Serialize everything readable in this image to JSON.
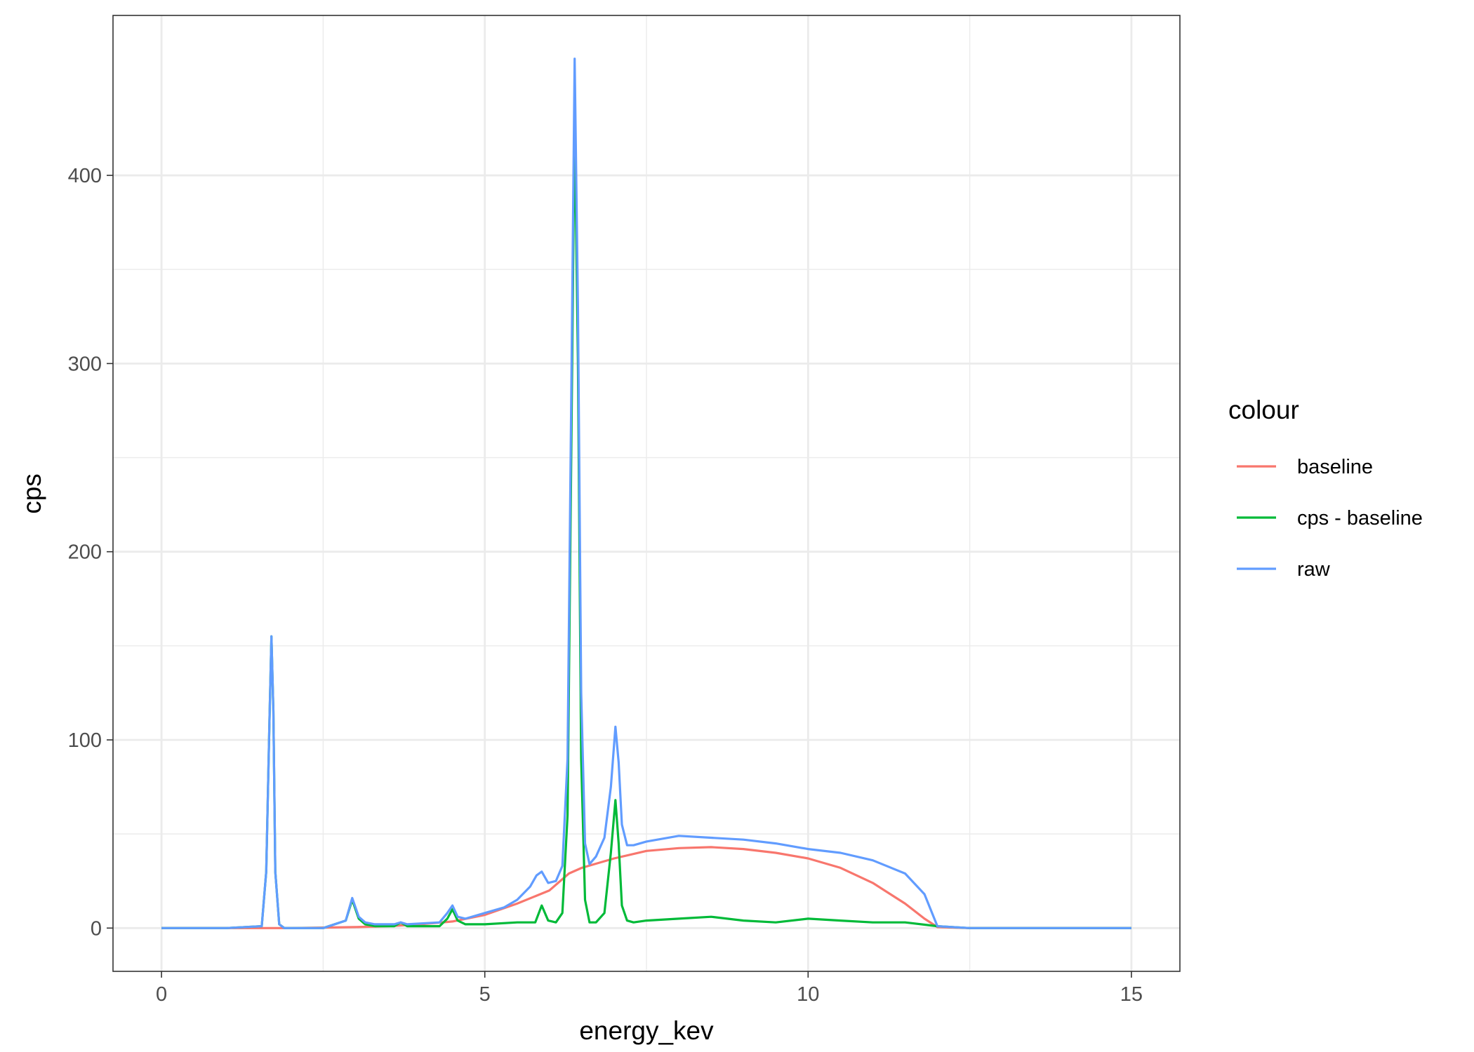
{
  "chart_data": {
    "type": "line",
    "xlabel": "energy_kev",
    "ylabel": "cps",
    "xlim": [
      -0.75,
      15.75
    ],
    "ylim": [
      -23,
      485
    ],
    "x_ticks": [
      0,
      5,
      10,
      15
    ],
    "x_tick_labels": [
      "0",
      "5",
      "10",
      "15"
    ],
    "y_ticks": [
      0,
      100,
      200,
      300,
      400
    ],
    "y_tick_labels": [
      "0",
      "100",
      "200",
      "300",
      "400"
    ],
    "grid": true,
    "legend": {
      "title": "colour",
      "placement": "right"
    },
    "series": [
      {
        "name": "baseline",
        "color": "#F8766D",
        "x": [
          0,
          1,
          2,
          3,
          3.5,
          4,
          4.5,
          5,
          5.5,
          6,
          6.3,
          6.5,
          7,
          7.5,
          8,
          8.5,
          9,
          9.5,
          10,
          10.5,
          11,
          11.5,
          11.8,
          12,
          12.5,
          13,
          14,
          15
        ],
        "y": [
          0,
          0,
          0,
          0.5,
          1,
          2,
          3.5,
          7,
          13,
          20,
          29,
          32,
          37,
          41,
          42.5,
          43,
          42,
          40,
          37,
          32,
          24,
          13,
          5,
          0.5,
          0,
          0,
          0,
          0
        ]
      },
      {
        "name": "cps - baseline",
        "color": "#00BA38",
        "x": [
          0,
          1,
          1.55,
          1.62,
          1.67,
          1.7,
          1.73,
          1.76,
          1.82,
          1.9,
          2.5,
          2.85,
          2.95,
          3.05,
          3.15,
          3.3,
          3.6,
          3.7,
          3.8,
          4.3,
          4.42,
          4.5,
          4.58,
          4.7,
          5,
          5.5,
          5.78,
          5.88,
          5.98,
          6.1,
          6.2,
          6.28,
          6.34,
          6.39,
          6.44,
          6.49,
          6.55,
          6.62,
          6.72,
          6.85,
          6.95,
          7.02,
          7.07,
          7.12,
          7.2,
          7.3,
          7.5,
          8,
          8.5,
          9,
          9.5,
          10,
          10.5,
          11,
          11.5,
          12,
          12.5,
          13,
          14,
          15
        ],
        "y": [
          0,
          0,
          1,
          30,
          110,
          155,
          115,
          30,
          2,
          0,
          0,
          4,
          15,
          5,
          2,
          1,
          1,
          3,
          1,
          1,
          5,
          10,
          4,
          2,
          2,
          3,
          3,
          12,
          4,
          3,
          8,
          60,
          260,
          432,
          300,
          90,
          15,
          3,
          3,
          8,
          40,
          68,
          45,
          12,
          4,
          3,
          4,
          5,
          6,
          4,
          3,
          5,
          4,
          3,
          3,
          1,
          0,
          0,
          0,
          0
        ]
      },
      {
        "name": "raw",
        "color": "#619CFF",
        "x": [
          0,
          1,
          1.55,
          1.62,
          1.67,
          1.7,
          1.73,
          1.76,
          1.82,
          1.9,
          2.5,
          2.85,
          2.95,
          3.05,
          3.15,
          3.3,
          3.6,
          3.7,
          3.8,
          4.3,
          4.42,
          4.5,
          4.58,
          4.7,
          5,
          5.3,
          5.5,
          5.7,
          5.8,
          5.88,
          5.98,
          6.1,
          6.2,
          6.28,
          6.34,
          6.39,
          6.44,
          6.49,
          6.55,
          6.62,
          6.72,
          6.85,
          6.95,
          7.02,
          7.07,
          7.12,
          7.2,
          7.3,
          7.5,
          8,
          8.5,
          9,
          9.5,
          10,
          10.5,
          11,
          11.5,
          11.8,
          12,
          12.5,
          13,
          14,
          15
        ],
        "y": [
          0,
          0,
          1,
          30,
          110,
          155,
          115,
          30,
          2,
          0,
          0,
          4,
          16,
          6,
          3,
          2,
          2,
          3,
          2,
          3,
          8,
          12,
          6,
          5,
          8,
          11,
          15,
          22,
          28,
          30,
          24,
          25,
          33,
          90,
          290,
          462,
          330,
          125,
          45,
          34,
          38,
          48,
          75,
          107,
          88,
          55,
          44,
          44,
          46,
          49,
          48,
          47,
          45,
          42,
          40,
          36,
          29,
          18,
          1,
          0,
          0,
          0,
          0
        ]
      }
    ]
  }
}
